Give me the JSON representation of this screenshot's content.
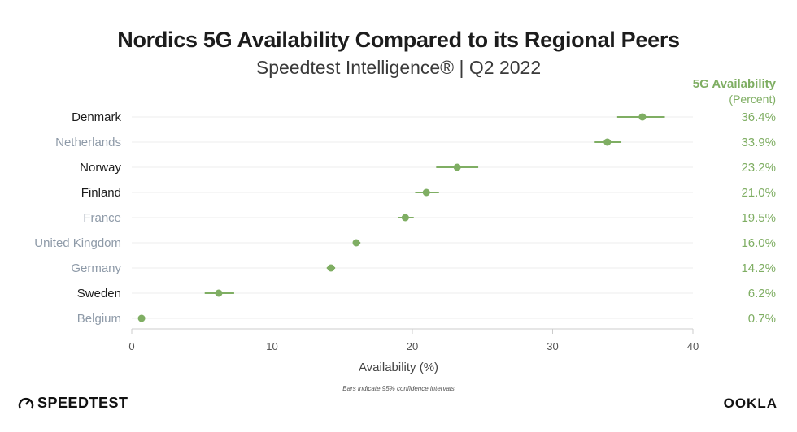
{
  "chart_data": {
    "type": "scatter",
    "title": "Nordics 5G Availability Compared to its Regional Peers",
    "subtitle": "Speedtest Intelligence® | Q2 2022",
    "value_header": "5G Availability",
    "value_subheader": "(Percent)",
    "xlabel": "Availability (%)",
    "note": "Bars indicate 95% confidence intervals",
    "xlim": [
      0,
      40
    ],
    "xticks": [
      0,
      10,
      20,
      30,
      40
    ],
    "categories": [
      "Denmark",
      "Netherlands",
      "Norway",
      "Finland",
      "France",
      "United Kingdom",
      "Germany",
      "Sweden",
      "Belgium"
    ],
    "values": [
      36.4,
      33.9,
      23.2,
      21.0,
      19.5,
      16.0,
      14.2,
      6.2,
      0.7
    ],
    "value_labels": [
      "36.4%",
      "33.9%",
      "23.2%",
      "21.0%",
      "19.5%",
      "16.0%",
      "14.2%",
      "6.2%",
      "0.7%"
    ],
    "ci_low": [
      34.6,
      33.0,
      21.7,
      20.2,
      19.0,
      15.8,
      13.9,
      5.2,
      0.6
    ],
    "ci_high": [
      38.0,
      34.9,
      24.7,
      21.9,
      20.1,
      16.3,
      14.5,
      7.3,
      0.8
    ],
    "nordic": [
      true,
      false,
      true,
      true,
      false,
      false,
      false,
      true,
      false
    ],
    "colors": {
      "point": "#7fae63",
      "nordic_label": "#1c1c1c",
      "peer_label": "#8e9aa8",
      "value_label": "#7fae63",
      "grid": "#eeeeee",
      "axis": "#cccccc"
    }
  },
  "branding": {
    "left": "SPEEDTEST",
    "right": "OOKLA"
  }
}
